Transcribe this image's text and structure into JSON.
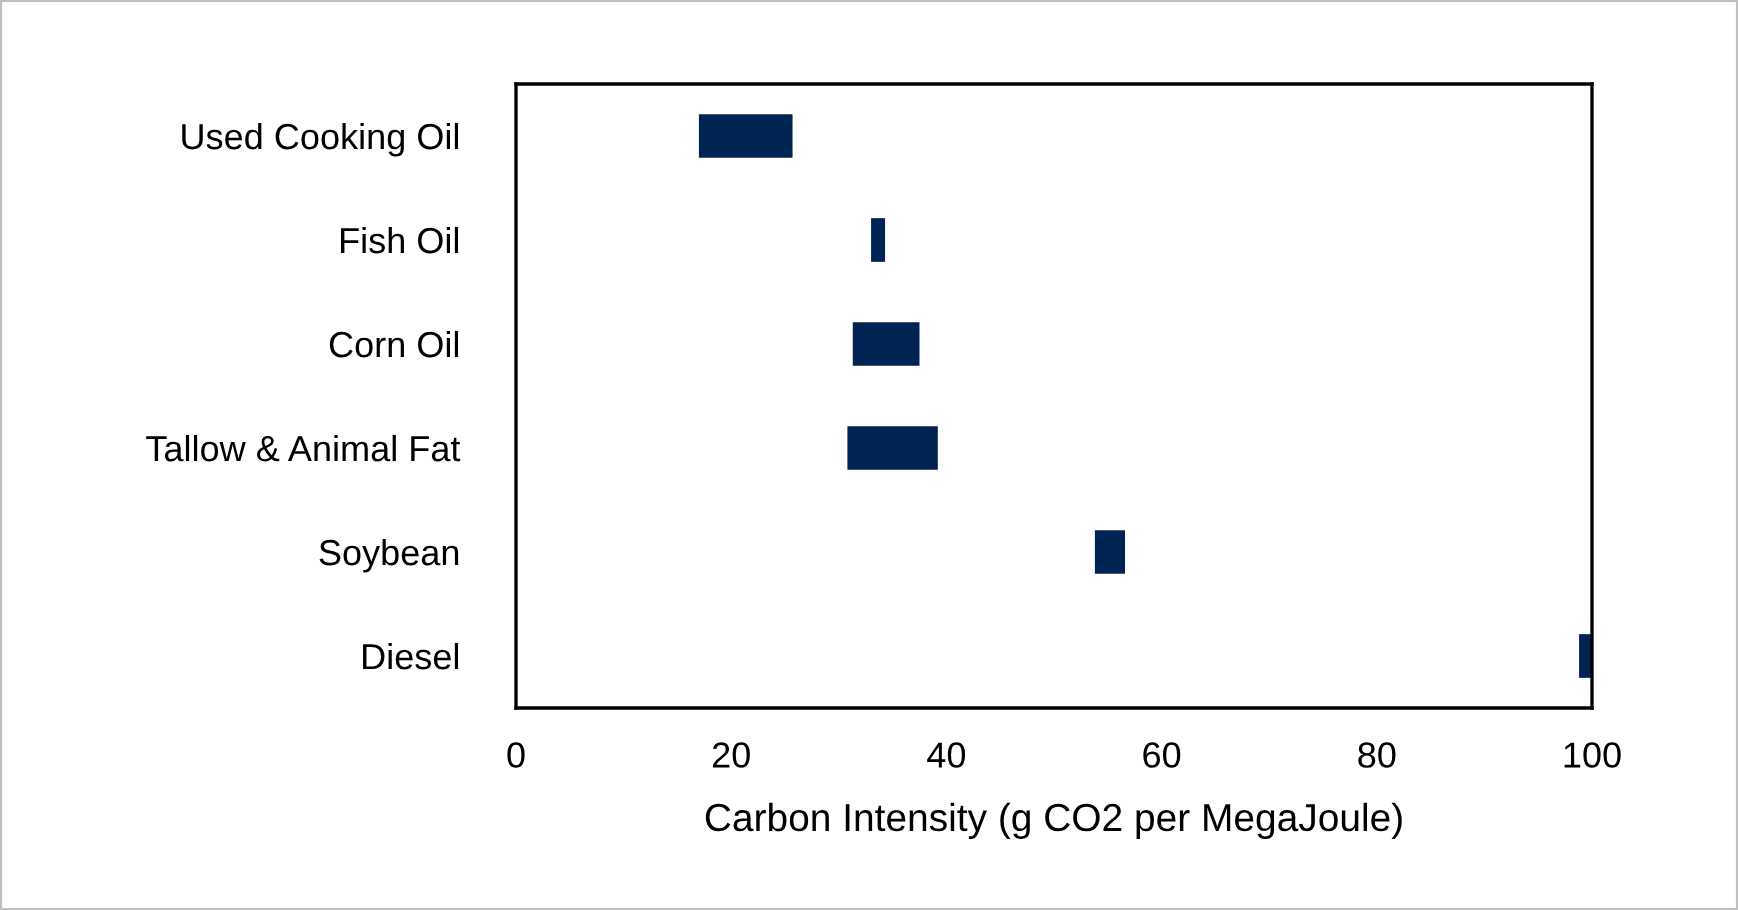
{
  "chart_data": {
    "type": "bar",
    "orientation": "horizontal",
    "xlabel": "Carbon Intensity (g CO2 per MegaJoule)",
    "categories": [
      "Used Cooking Oil",
      "Fish Oil",
      "Corn Oil",
      "Tallow & Animal Fat",
      "Soybean",
      "Diesel"
    ],
    "base": [
      17,
      33,
      31.3,
      30.8,
      53.8,
      98.8
    ],
    "values": [
      8.7,
      1.3,
      6.2,
      8.4,
      2.8,
      1.2
    ],
    "color": "#002451",
    "xlim": [
      0,
      100
    ],
    "xticks": [
      0,
      20,
      40,
      60,
      80,
      100
    ],
    "grid": false,
    "legend": false
  }
}
